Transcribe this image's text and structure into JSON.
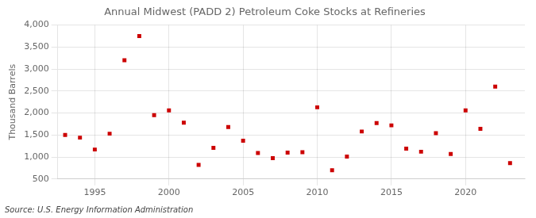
{
  "chart_data": {
    "type": "scatter",
    "title": "Annual Midwest (PADD 2) Petroleum Coke Stocks at Refineries",
    "ylabel": "Thousand Barrels",
    "source": "Source: U.S. Energy Information Administration",
    "x": [
      1993,
      1994,
      1995,
      1996,
      1997,
      1998,
      1999,
      2000,
      2001,
      2002,
      2003,
      2004,
      2005,
      2006,
      2007,
      2008,
      2009,
      2010,
      2011,
      2012,
      2013,
      2014,
      2015,
      2016,
      2017,
      2018,
      2019,
      2020,
      2021,
      2022,
      2023
    ],
    "values": [
      1500,
      1440,
      1170,
      1530,
      3200,
      3750,
      1950,
      2060,
      1780,
      820,
      1210,
      1680,
      1370,
      1090,
      975,
      1100,
      1110,
      2130,
      700,
      1010,
      1580,
      1770,
      1720,
      1190,
      1120,
      1540,
      1070,
      2060,
      1640,
      2600,
      860
    ],
    "color": "#cc0000",
    "marker": "square",
    "xlim": [
      1992.5,
      2024
    ],
    "xticks": [
      1995,
      2000,
      2005,
      2010,
      2015,
      2020
    ],
    "ylim": [
      500,
      4000
    ],
    "yticks": [
      500,
      {
        "value": 1000,
        "label": "1,000"
      },
      {
        "value": 1500,
        "label": "1,500"
      },
      {
        "value": 2000,
        "label": "2,000"
      },
      {
        "value": 2500,
        "label": "2,500"
      },
      {
        "value": 3000,
        "label": "3,000"
      },
      {
        "value": 3500,
        "label": "3,500"
      },
      {
        "value": 4000,
        "label": "4,000"
      }
    ],
    "grid": true
  }
}
